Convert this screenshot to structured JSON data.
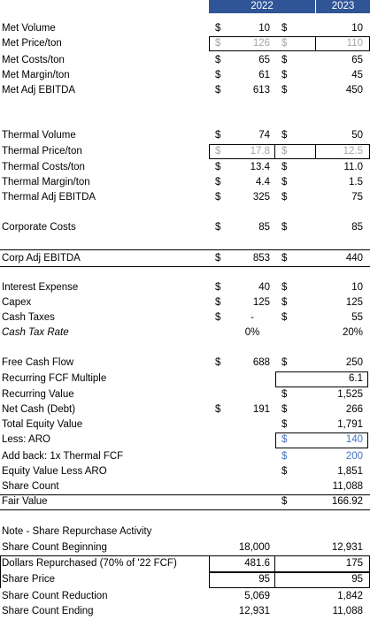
{
  "headers": {
    "y2022": "2022",
    "y2023": "2023"
  },
  "cur": "$",
  "met": {
    "volume": {
      "label": "Met Volume",
      "v22": "10",
      "v23": "10"
    },
    "price": {
      "label": "Met Price/ton",
      "v22": "126",
      "v23": "110"
    },
    "costs": {
      "label": "Met Costs/ton",
      "v22": "65",
      "v23": "65"
    },
    "margin": {
      "label": "Met Margin/ton",
      "v22": "61",
      "v23": "45"
    },
    "ebitda": {
      "label": "Met Adj EBITDA",
      "v22": "613",
      "v23": "450"
    }
  },
  "thermal": {
    "volume": {
      "label": "Thermal Volume",
      "v22": "74",
      "v23": "50"
    },
    "price": {
      "label": "Thermal Price/ton",
      "v22": "17.8",
      "v23": "12.5"
    },
    "costs": {
      "label": "Thermal Costs/ton",
      "v22": "13.4",
      "v23": "11.0"
    },
    "margin": {
      "label": "Thermal Margin/ton",
      "v22": "4.4",
      "v23": "1.5"
    },
    "ebitda": {
      "label": "Thermal Adj EBITDA",
      "v22": "325",
      "v23": "75"
    }
  },
  "corporate": {
    "label": "Corporate Costs",
    "v22": "85",
    "v23": "85"
  },
  "corp_ebitda": {
    "label": "Corp Adj EBITDA",
    "v22": "853",
    "v23": "440"
  },
  "interest": {
    "label": "Interest Expense",
    "v22": "40",
    "v23": "10"
  },
  "capex": {
    "label": "Capex",
    "v22": "125",
    "v23": "125"
  },
  "cash_taxes": {
    "label": "Cash Taxes",
    "v22": "-",
    "v23": "55"
  },
  "cash_tax_rate": {
    "label": "Cash Tax Rate",
    "v22": "0%",
    "v23": "20%"
  },
  "fcf": {
    "label": "Free Cash Flow",
    "v22": "688",
    "v23": "250"
  },
  "fcf_multiple": {
    "label": "Recurring FCF Multiple",
    "v23": "6.1"
  },
  "recurring_value": {
    "label": "Recurring Value",
    "v23": "1,525"
  },
  "net_cash": {
    "label": "Net Cash (Debt)",
    "v22": "191",
    "v23": "266"
  },
  "equity_value": {
    "label": "Total Equity Value",
    "v23": "1,791"
  },
  "aro": {
    "label": "Less: ARO",
    "v23": "140"
  },
  "addback": {
    "label": "Add back: 1x Thermal FCF",
    "v23": "200"
  },
  "eq_less_aro": {
    "label": "Equity Value Less ARO",
    "v23": "1,851"
  },
  "share_count": {
    "label": "Share Count",
    "v23": "11,088"
  },
  "fair_value": {
    "label": "Fair Value",
    "v23": "166.92"
  },
  "note": {
    "label": "Note - Share Repurchase Activity"
  },
  "sc_begin": {
    "label": "Share Count Beginning",
    "v22": "18,000",
    "v23": "12,931"
  },
  "dollars_rep": {
    "label": "Dollars Repurchased (70% of '22 FCF)",
    "v22": "481.6",
    "v23": "175"
  },
  "share_price": {
    "label": "Share Price",
    "v22": "95",
    "v23": "95"
  },
  "sc_reduction": {
    "label": "Share Count Reduction",
    "v22": "5,069",
    "v23": "1,842"
  },
  "sc_end": {
    "label": "Share Count Ending",
    "v22": "12,931",
    "v23": "11,088"
  }
}
